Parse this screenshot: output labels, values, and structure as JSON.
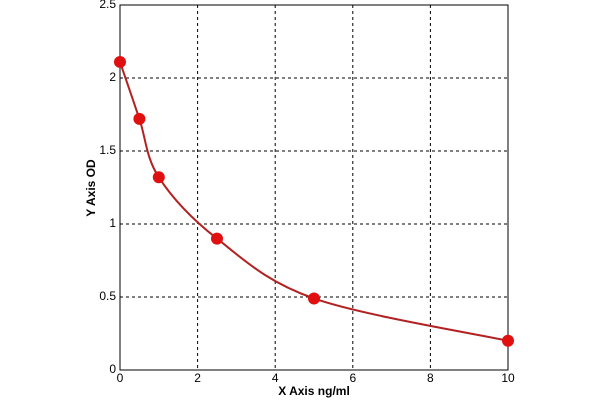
{
  "chart_data": {
    "type": "scatter",
    "x_label": "X Axis ng/ml",
    "y_label": "Y Axis OD",
    "series": [
      {
        "color": "#e01010",
        "line_color": "#b22222",
        "x": [
          0,
          0.5,
          1,
          2.5,
          5,
          10
        ],
        "values": [
          2.11,
          1.72,
          1.32,
          0.9,
          0.49,
          0.2
        ]
      }
    ],
    "xlim": [
      0,
      10
    ],
    "xticks": [
      0,
      2,
      4,
      6,
      8,
      10
    ],
    "ylim": [
      0,
      2.5
    ],
    "yticks": [
      0,
      0.5,
      1,
      1.5,
      2,
      2.5
    ],
    "grid": true
  }
}
